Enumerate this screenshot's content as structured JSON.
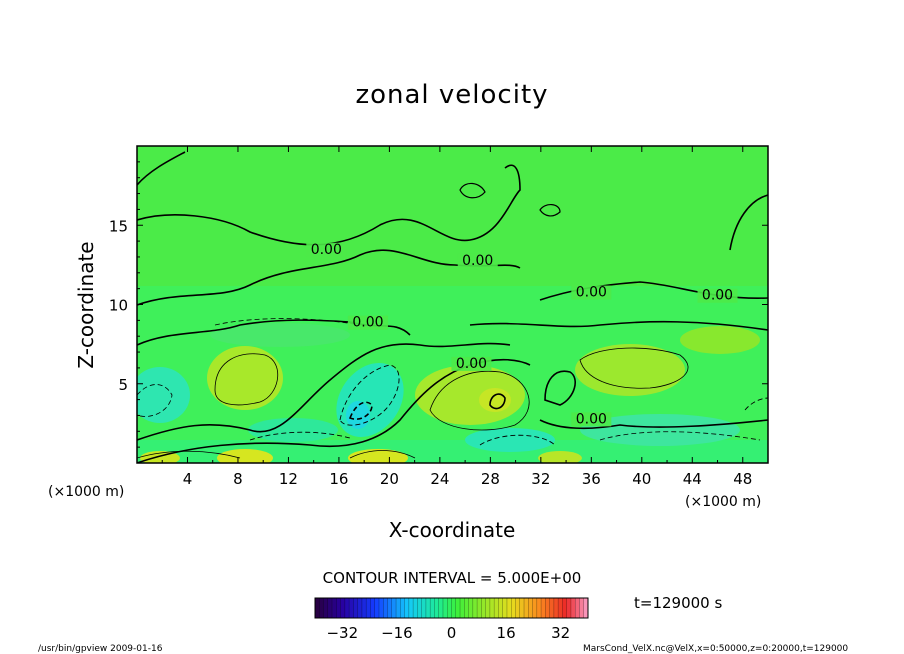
{
  "chart_data": {
    "type": "heatmap",
    "title": "zonal velocity",
    "xlabel": "X-coordinate",
    "ylabel": "Z-coordinate",
    "x_unit": "(×1000 m)",
    "y_unit": "(×1000 m)",
    "xlim": [
      0,
      50
    ],
    "ylim": [
      0,
      20
    ],
    "x_ticks": [
      4,
      8,
      12,
      16,
      20,
      24,
      28,
      32,
      36,
      40,
      44,
      48
    ],
    "y_ticks": [
      5,
      10,
      15
    ],
    "contour_interval_text": "CONTOUR INTERVAL = 5.000E+00",
    "contour_labels": [
      {
        "text": "0.00",
        "x": 15.0,
        "z": 13.2
      },
      {
        "text": "0.00",
        "x": 27.0,
        "z": 12.5
      },
      {
        "text": "0.00",
        "x": 36.0,
        "z": 10.5
      },
      {
        "text": "0.00",
        "x": 46.0,
        "z": 10.3
      },
      {
        "text": "0.00",
        "x": 18.3,
        "z": 8.6
      },
      {
        "text": "0.00",
        "x": 26.5,
        "z": 6.0
      },
      {
        "text": "0.00",
        "x": 36.0,
        "z": 2.5
      }
    ],
    "colorbar": {
      "ticks": [
        -32,
        -16,
        0,
        16,
        32
      ],
      "range": [
        -40,
        40
      ],
      "levels": 64
    },
    "time_text": "t=129000 s"
  },
  "footer": {
    "left": "/usr/bin/gpview   2009-01-16",
    "right": "MarsCond_VelX.nc@VelX,x=0:50000,z=0:20000,t=129000"
  }
}
